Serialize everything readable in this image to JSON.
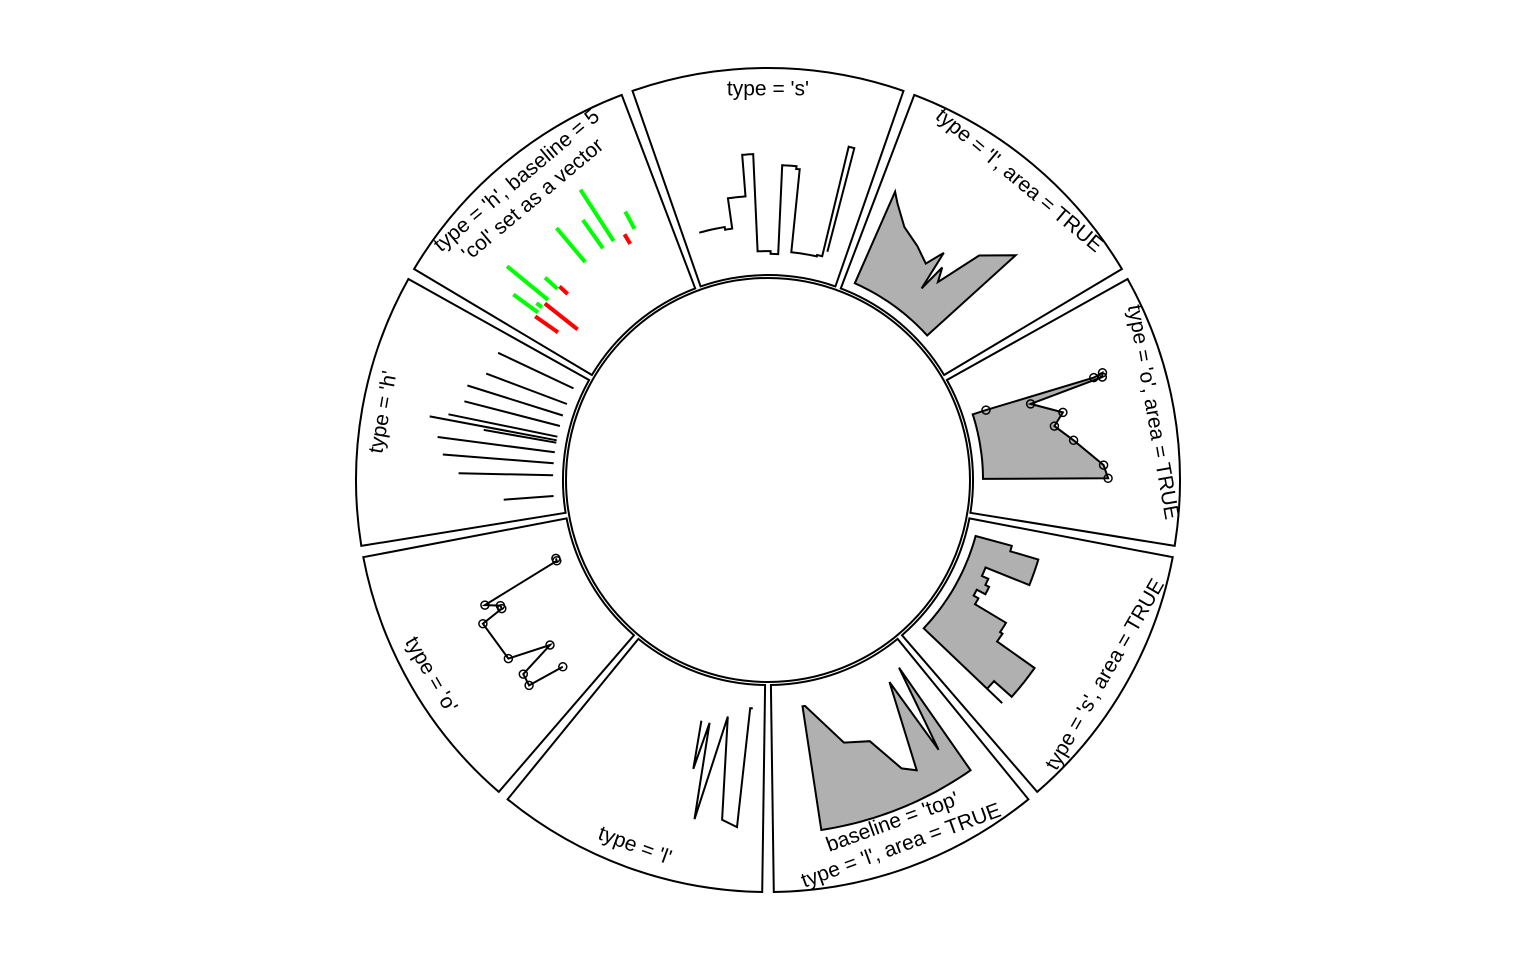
{
  "chart_data": {
    "type": "circular-track-panels",
    "sectors": [
      {
        "id": "l",
        "label": "type = 'l'",
        "plot_type": "l",
        "area": false,
        "line_color": "#000000",
        "points": [
          [
            0.36,
            0.25
          ],
          [
            0.33,
            0.6
          ],
          [
            0.3,
            0.25
          ],
          [
            0.26,
            0.95
          ],
          [
            0.18,
            0.18
          ],
          [
            0.12,
            0.92
          ],
          [
            0.04,
            0.96
          ],
          [
            0.02,
            0.1
          ],
          [
            0.0,
            0.1
          ]
        ]
      },
      {
        "id": "o",
        "label": "type = 'o'",
        "plot_type": "o",
        "area": false,
        "line_color": "#000000",
        "points": [
          [
            0.12,
            0.45
          ],
          [
            0.17,
            0.72
          ],
          [
            0.24,
            0.7
          ],
          [
            0.28,
            0.42
          ],
          [
            0.36,
            0.72
          ],
          [
            0.6,
            0.75
          ],
          [
            0.63,
            0.58
          ],
          [
            0.65,
            0.58
          ],
          [
            0.69,
            0.68
          ],
          [
            0.78,
            0.08
          ],
          [
            0.8,
            0.08
          ]
        ]
      },
      {
        "id": "h",
        "label": "type = 'h'",
        "plot_type": "h",
        "area": false,
        "line_color": "#000000",
        "points": [
          [
            0.06,
            0.36
          ],
          [
            0.23,
            0.68
          ],
          [
            0.33,
            0.8
          ],
          [
            0.42,
            0.85
          ],
          [
            0.5,
            0.53
          ],
          [
            0.52,
            0.93
          ],
          [
            0.55,
            0.8
          ],
          [
            0.64,
            0.71
          ],
          [
            0.73,
            0.72
          ],
          [
            0.83,
            0.62
          ],
          [
            0.97,
            0.6
          ]
        ]
      },
      {
        "id": "h-col-vector",
        "label": "type = 'h', baseline = 5",
        "label2": "'col' set as a vector",
        "plot_type": "h",
        "area": false,
        "baseline": 5,
        "colors": [
          "#ff0000",
          "#00ff00"
        ],
        "points": [
          [
            0.04,
            0.3
          ],
          [
            0.07,
            0.72
          ],
          [
            0.11,
            0.55
          ],
          [
            0.14,
            0.2
          ],
          [
            0.17,
            0.88
          ],
          [
            0.26,
            0.62
          ],
          [
            0.28,
            0.42
          ],
          [
            0.5,
            0.82
          ],
          [
            0.64,
            0.75
          ],
          [
            0.72,
            0.94
          ],
          [
            0.8,
            0.42
          ],
          [
            0.87,
            0.64
          ],
          [
            0.93,
            0.5
          ]
        ]
      },
      {
        "id": "s",
        "label": "type = 's'",
        "plot_type": "s",
        "area": false,
        "line_color": "#000000",
        "points": [
          [
            0.02,
            0.3
          ],
          [
            0.2,
            0.28
          ],
          [
            0.25,
            0.5
          ],
          [
            0.34,
            0.5
          ],
          [
            0.36,
            0.8
          ],
          [
            0.42,
            0.1
          ],
          [
            0.52,
            0.08
          ],
          [
            0.58,
            0.72
          ],
          [
            0.66,
            0.7
          ],
          [
            0.68,
            0.1
          ],
          [
            0.88,
            0.11
          ],
          [
            0.92,
            0.92
          ],
          [
            0.95,
            0.15
          ]
        ]
      },
      {
        "id": "l-area",
        "label": "type = 'l', area = TRUE",
        "plot_type": "l",
        "area": true,
        "area_color": "#b0b0b0",
        "points": [
          [
            0.0,
            0.72
          ],
          [
            0.04,
            0.65
          ],
          [
            0.14,
            0.52
          ],
          [
            0.27,
            0.45
          ],
          [
            0.38,
            0.38
          ],
          [
            0.43,
            0.52
          ],
          [
            0.46,
            0.22
          ],
          [
            0.48,
            0.43
          ],
          [
            0.52,
            0.33
          ],
          [
            0.6,
            0.67
          ],
          [
            0.74,
            0.86
          ]
        ]
      },
      {
        "id": "o-area",
        "label": "type = 'o', area = TRUE",
        "plot_type": "o",
        "area": true,
        "area_color": "#b0b0b0",
        "points": [
          [
            0.26,
            0.1
          ],
          [
            0.27,
            0.91
          ],
          [
            0.26,
            0.98
          ],
          [
            0.28,
            0.97
          ],
          [
            0.31,
            0.42
          ],
          [
            0.41,
            0.63
          ],
          [
            0.48,
            0.55
          ],
          [
            0.58,
            0.67
          ],
          [
            0.73,
            0.87
          ],
          [
            0.8,
            0.9
          ]
        ]
      },
      {
        "id": "s-area",
        "label": "type = 's', area = TRUE",
        "plot_type": "s",
        "area": true,
        "area_color": "#b0b0b0",
        "points": [
          [
            0.04,
            0.27
          ],
          [
            0.08,
            0.48
          ],
          [
            0.25,
            0.14
          ],
          [
            0.32,
            0.19
          ],
          [
            0.37,
            0.22
          ],
          [
            0.43,
            0.15
          ],
          [
            0.48,
            0.19
          ],
          [
            0.53,
            0.45
          ],
          [
            0.6,
            0.47
          ],
          [
            0.66,
            0.8
          ],
          [
            0.76,
            0.8
          ],
          [
            0.86,
            0.63
          ],
          [
            0.92,
            0.78
          ]
        ]
      },
      {
        "id": "l-area-top",
        "label": "type = 'l', area = TRUE",
        "label2": "baseline = 'top'",
        "plot_type": "l",
        "area": true,
        "baseline": "top",
        "area_color": "#b0b0b0",
        "points": [
          [
            0.04,
            0.1
          ],
          [
            0.12,
            0.75
          ],
          [
            0.16,
            0.15
          ],
          [
            0.28,
            0.8
          ],
          [
            0.35,
            0.74
          ],
          [
            0.46,
            0.47
          ],
          [
            0.62,
            0.42
          ],
          [
            0.83,
            0.1
          ],
          [
            0.85,
            0.1
          ]
        ]
      }
    ]
  }
}
